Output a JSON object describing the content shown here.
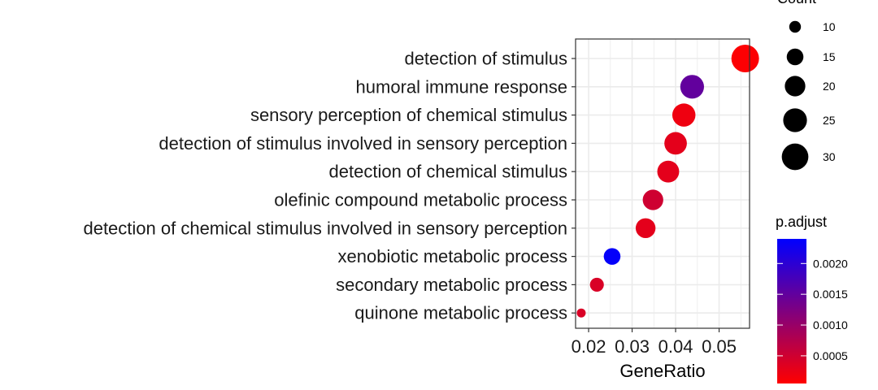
{
  "chart_data": {
    "type": "scatter",
    "subtype": "dot-plot",
    "xlabel": "GeneRatio",
    "ylabel": "",
    "xlim": [
      0.017,
      0.057
    ],
    "x_ticks": [
      0.02,
      0.03,
      0.04,
      0.05
    ],
    "x_tick_labels": [
      "0.02",
      "0.03",
      "0.04",
      "0.05"
    ],
    "grid": true,
    "categories": [
      "detection of stimulus",
      "humoral immune response",
      "sensory perception of chemical stimulus",
      "detection of stimulus involved in sensory perception",
      "detection of chemical stimulus",
      "olefinic compound metabolic process",
      "detection of chemical stimulus involved in sensory perception",
      "xenobiotic metabolic process",
      "secondary metabolic process",
      "quinone metabolic process"
    ],
    "points": [
      {
        "category": "detection of stimulus",
        "gene_ratio": 0.056,
        "count": 32,
        "p_adjust": 8e-05
      },
      {
        "category": "humoral immune response",
        "gene_ratio": 0.0438,
        "count": 25,
        "p_adjust": 0.0015
      },
      {
        "category": "sensory perception of chemical stimulus",
        "gene_ratio": 0.0419,
        "count": 24,
        "p_adjust": 0.0002
      },
      {
        "category": "detection of stimulus involved in sensory perception",
        "gene_ratio": 0.04,
        "count": 23,
        "p_adjust": 0.0003
      },
      {
        "category": "detection of chemical stimulus",
        "gene_ratio": 0.0383,
        "count": 22,
        "p_adjust": 0.0003
      },
      {
        "category": "olefinic compound metabolic process",
        "gene_ratio": 0.0348,
        "count": 20,
        "p_adjust": 0.0005
      },
      {
        "category": "detection of chemical stimulus involved in sensory perception",
        "gene_ratio": 0.0331,
        "count": 19,
        "p_adjust": 0.0003
      },
      {
        "category": "xenobiotic metabolic process",
        "gene_ratio": 0.0254,
        "count": 15,
        "p_adjust": 0.00235
      },
      {
        "category": "secondary metabolic process",
        "gene_ratio": 0.0219,
        "count": 12,
        "p_adjust": 0.0004
      },
      {
        "category": "quinone metabolic process",
        "gene_ratio": 0.0183,
        "count": 8,
        "p_adjust": 0.0004
      }
    ],
    "size_legend": {
      "title": "Count",
      "values": [
        10,
        15,
        20,
        25,
        30
      ],
      "labels": [
        "10",
        "15",
        "20",
        "25",
        "30"
      ]
    },
    "color_legend": {
      "title": "p.adjust",
      "low_color": "#ff0000",
      "high_color": "#0000ff",
      "range": [
        5e-05,
        0.0024
      ],
      "ticks": [
        0.0005,
        0.001,
        0.0015,
        0.002
      ],
      "tick_labels": [
        "0.0005",
        "0.0010",
        "0.0015",
        "0.0020"
      ]
    },
    "legend_position": "right"
  }
}
